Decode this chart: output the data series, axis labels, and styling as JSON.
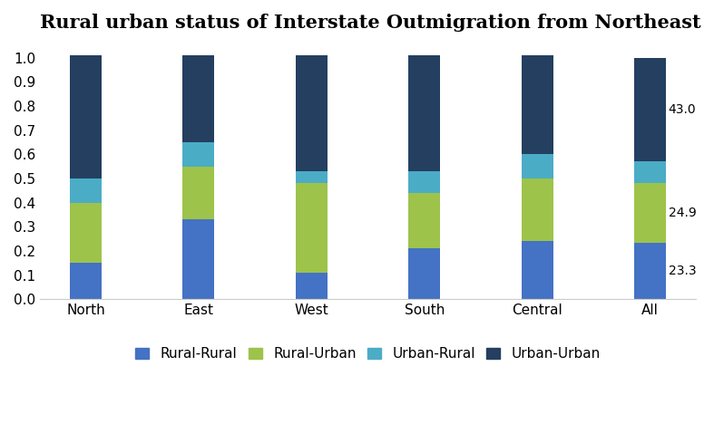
{
  "categories": [
    "North",
    "East",
    "West",
    "South",
    "Central",
    "All"
  ],
  "series": {
    "Rural-Rural": [
      0.15,
      0.33,
      0.11,
      0.21,
      0.24,
      0.233
    ],
    "Rural-Urban": [
      0.25,
      0.22,
      0.37,
      0.23,
      0.26,
      0.249
    ],
    "Urban-Rural": [
      0.1,
      0.1,
      0.05,
      0.09,
      0.1,
      0.088
    ],
    "Urban-Urban": [
      0.51,
      0.36,
      0.48,
      0.48,
      0.41,
      0.43
    ]
  },
  "colors": {
    "Rural-Rural": "#4472C4",
    "Rural-Urban": "#9DC34A",
    "Urban-Rural": "#4BACC6",
    "Urban-Urban": "#243F60"
  },
  "annotations": {
    "All": {
      "Rural-Rural": "23.3",
      "Rural-Urban": "24.9",
      "Urban-Urban": "43.0"
    }
  },
  "title": "Rural urban status of Interstate Outmigration from Northeast",
  "ylim": [
    0,
    1.05
  ],
  "yticks": [
    0.0,
    0.1,
    0.2,
    0.3,
    0.4,
    0.5,
    0.6,
    0.7,
    0.8,
    0.9,
    1.0
  ],
  "annotation_fontsize": 10,
  "title_fontsize": 15,
  "legend_fontsize": 11,
  "tick_fontsize": 11,
  "bar_width": 0.28
}
